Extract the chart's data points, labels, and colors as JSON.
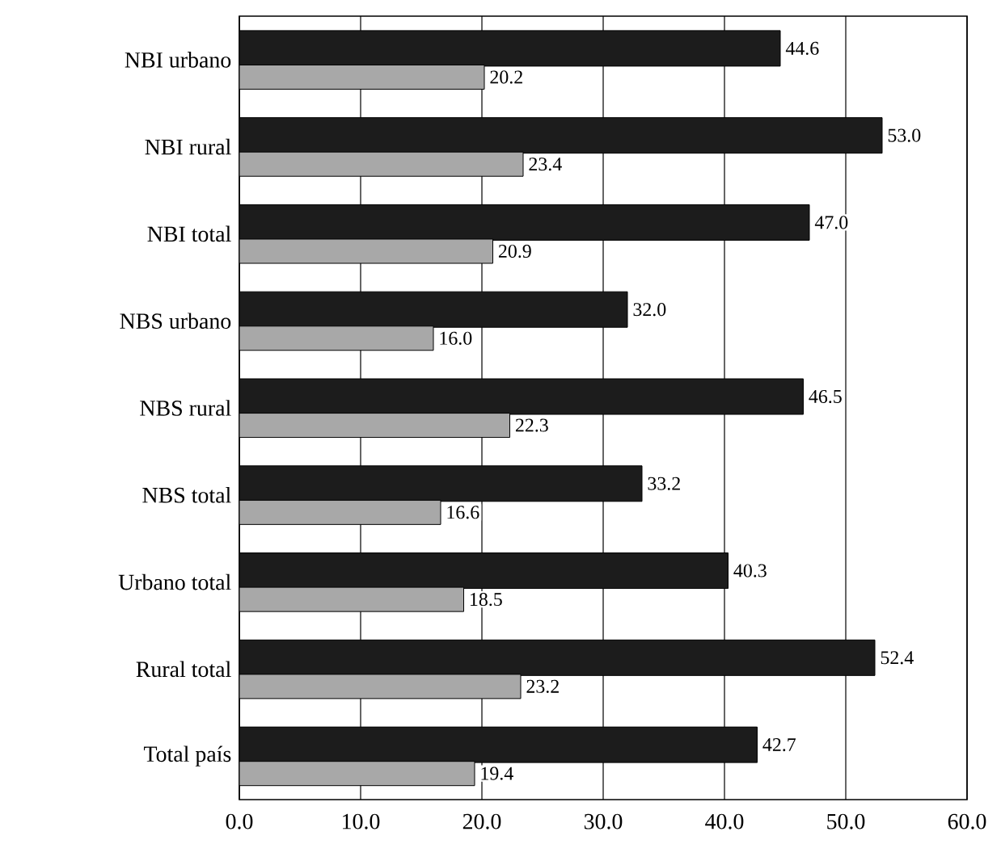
{
  "chart_data": {
    "type": "bar",
    "orientation": "horizontal",
    "grid": "x",
    "categories": [
      "NBI urbano",
      "NBI rural",
      "NBI total",
      "NBS urbano",
      "NBS rural",
      "NBS total",
      "Urbano total",
      "Rural total",
      "Total país"
    ],
    "series": [
      {
        "color": "#1c1c1c",
        "values": [
          44.6,
          53.0,
          47.0,
          32.0,
          46.5,
          33.2,
          40.3,
          52.4,
          42.7
        ],
        "value_labels": [
          "44.6",
          "53.0",
          "47.0",
          "32.0",
          "46.5",
          "33.2",
          "40.3",
          "52.4",
          "42.7"
        ]
      },
      {
        "color": "#a8a8a8",
        "values": [
          20.2,
          23.4,
          20.9,
          16.0,
          22.3,
          16.6,
          18.5,
          23.2,
          19.4
        ],
        "value_labels": [
          "20.2",
          "23.4",
          "20.9",
          "16.0",
          "22.3",
          "16.6",
          "18.5",
          "23.2",
          "19.4"
        ]
      }
    ],
    "xlim": [
      0,
      60
    ],
    "xticks": [
      {
        "value": 0,
        "label": "0.0"
      },
      {
        "value": 10,
        "label": "10.0"
      },
      {
        "value": 20,
        "label": "20.0"
      },
      {
        "value": 30,
        "label": "30.0"
      },
      {
        "value": 40,
        "label": "40.0"
      },
      {
        "value": 50,
        "label": "50.0"
      },
      {
        "value": 60,
        "label": "60.0"
      }
    ]
  }
}
